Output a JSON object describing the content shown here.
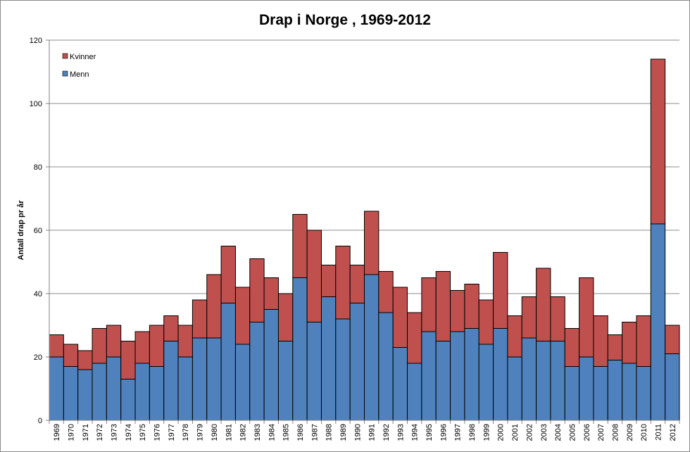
{
  "chart_data": {
    "type": "bar",
    "stacked": true,
    "title": "Drap i Norge , 1969-2012",
    "xlabel": "",
    "ylabel": "Antall drap pr år",
    "ylim": [
      0,
      120
    ],
    "yticks": [
      0,
      20,
      40,
      60,
      80,
      100,
      120
    ],
    "grid": true,
    "legend_position": "top-left",
    "categories": [
      "1969",
      "1970",
      "1971",
      "1972",
      "1973",
      "1974",
      "1975",
      "1976",
      "1977",
      "1978",
      "1979",
      "1980",
      "1981",
      "1982",
      "1983",
      "1984",
      "1985",
      "1986",
      "1987",
      "1988",
      "1989",
      "1990",
      "1991",
      "1992",
      "1993",
      "1994",
      "1995",
      "1996",
      "1997",
      "1998",
      "1999",
      "2000",
      "2001",
      "2002",
      "2003",
      "2004",
      "2005",
      "2006",
      "2007",
      "2008",
      "2009",
      "2010",
      "2011",
      "2012"
    ],
    "series": [
      {
        "name": "Menn",
        "color": "#4f81bd",
        "values": [
          20,
          17,
          16,
          18,
          20,
          13,
          18,
          17,
          25,
          20,
          26,
          26,
          37,
          24,
          31,
          35,
          25,
          45,
          31,
          39,
          32,
          37,
          46,
          34,
          23,
          18,
          28,
          25,
          28,
          29,
          24,
          29,
          20,
          26,
          25,
          25,
          17,
          20,
          17,
          19,
          18,
          17,
          62,
          21
        ]
      },
      {
        "name": "Kvinner",
        "color": "#c0504d",
        "values": [
          7,
          7,
          6,
          11,
          10,
          12,
          10,
          13,
          8,
          10,
          12,
          20,
          18,
          18,
          20,
          10,
          15,
          20,
          29,
          10,
          23,
          12,
          20,
          13,
          19,
          16,
          17,
          22,
          13,
          14,
          14,
          24,
          13,
          13,
          23,
          14,
          12,
          25,
          16,
          8,
          13,
          16,
          52,
          9
        ]
      }
    ],
    "legend": [
      {
        "label": "Kvinner",
        "color": "#c0504d"
      },
      {
        "label": "Menn",
        "color": "#4f81bd"
      }
    ]
  }
}
